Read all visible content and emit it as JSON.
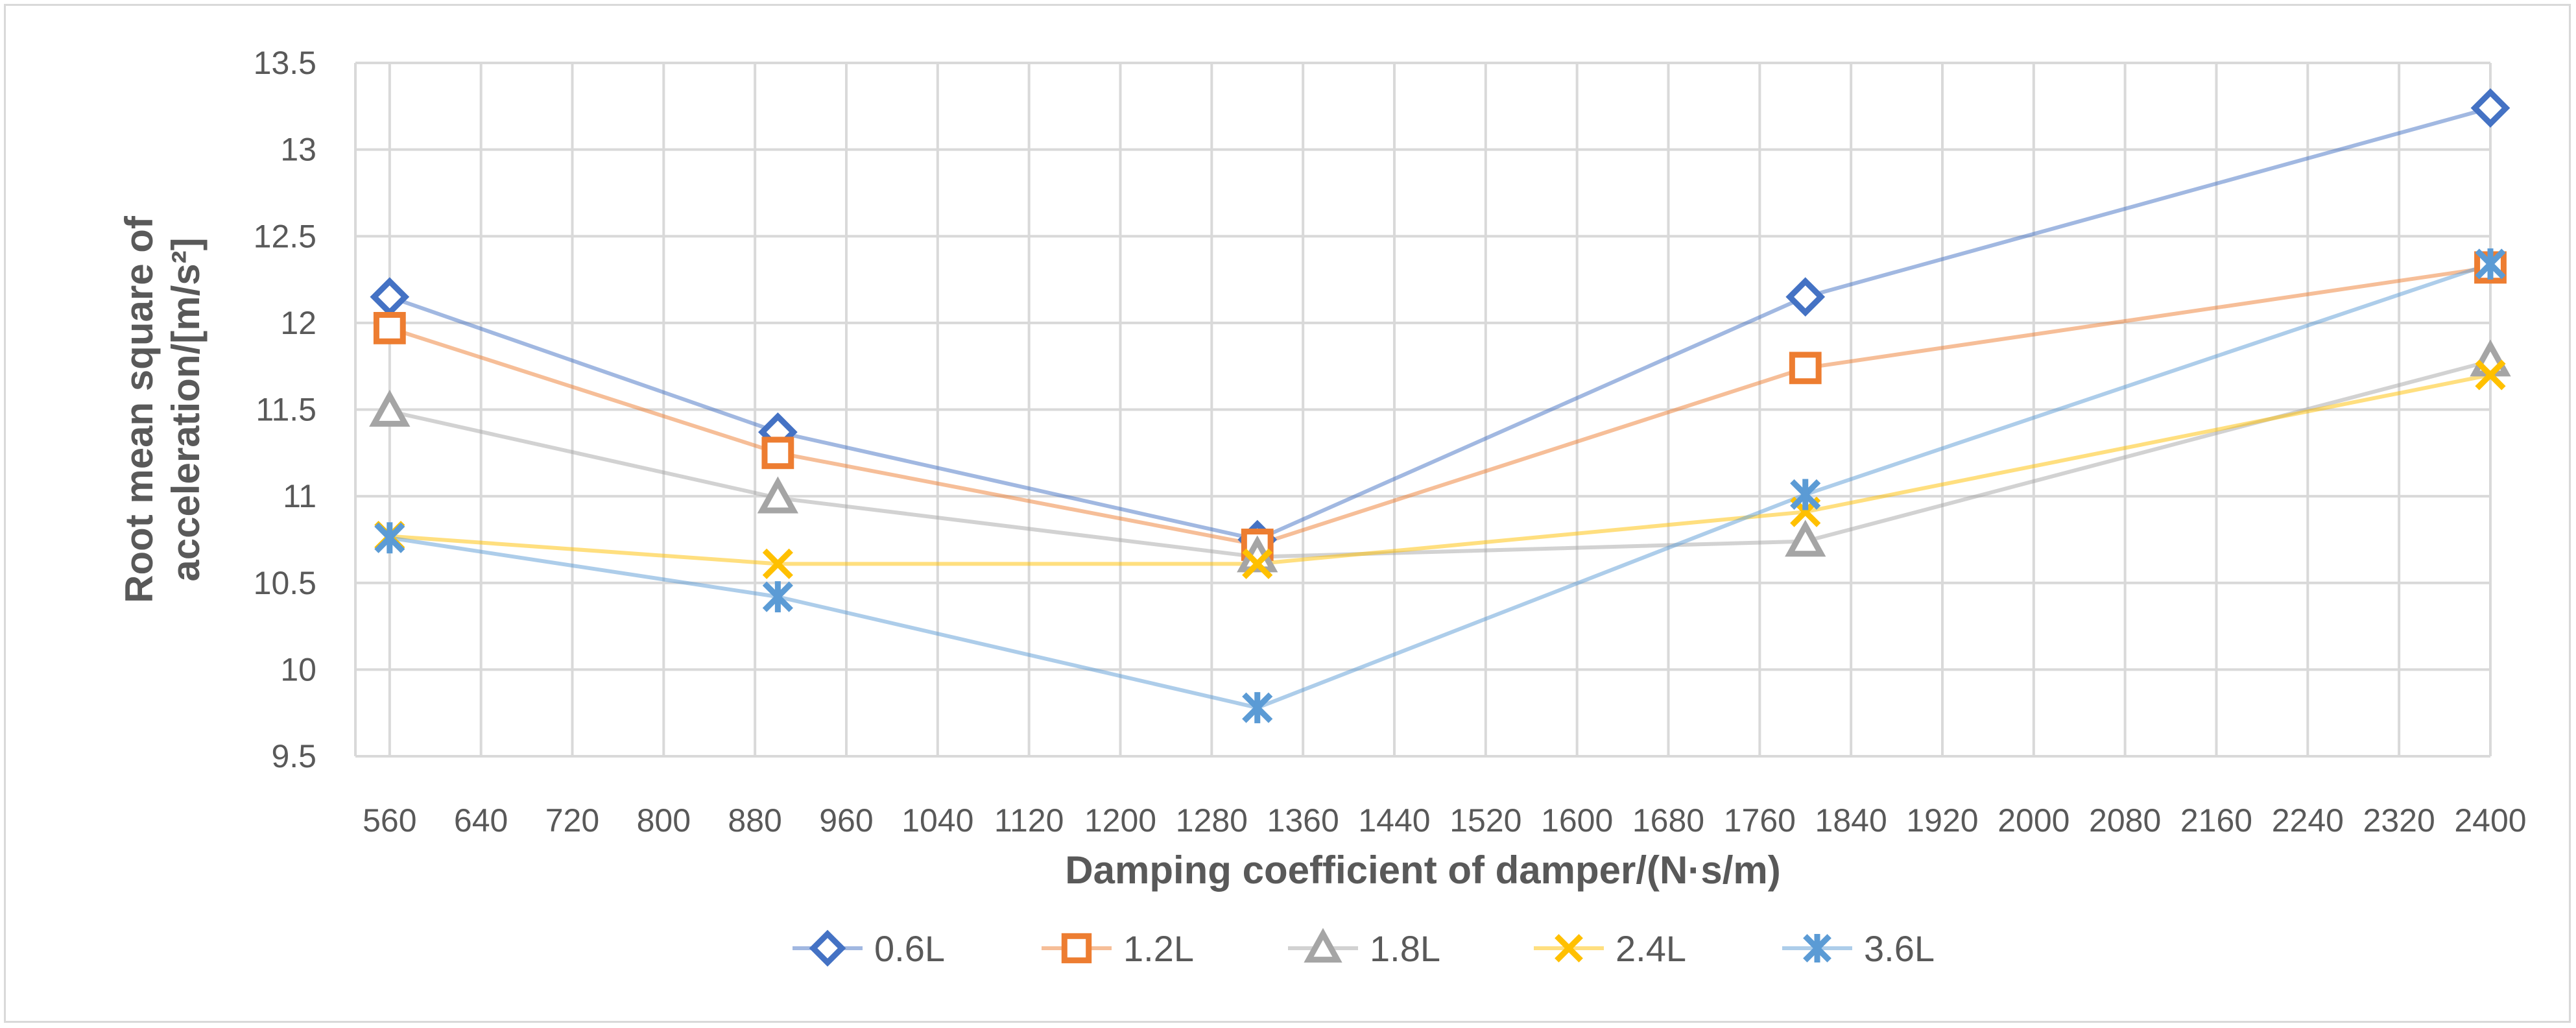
{
  "chart_data": {
    "type": "line",
    "title": "",
    "xlabel": "Damping coefficient of damper/(N·s/m)",
    "ylabel_line1": "Root mean square of",
    "ylabel_line2": "acceleration/[m/s²]",
    "xlim": [
      530,
      2400
    ],
    "ylim": [
      9.5,
      13.5
    ],
    "x_ticks": [
      560,
      640,
      720,
      800,
      880,
      960,
      1040,
      1120,
      1200,
      1280,
      1360,
      1440,
      1520,
      1600,
      1680,
      1760,
      1840,
      1920,
      2000,
      2080,
      2160,
      2240,
      2320,
      2400
    ],
    "y_ticks": [
      9.5,
      10,
      10.5,
      11,
      11.5,
      12,
      12.5,
      13,
      13.5
    ],
    "y_tick_labels": [
      "9.5",
      "10",
      "10.5",
      "11",
      "11.5",
      "12",
      "12.5",
      "13",
      "13.5"
    ],
    "grid": true,
    "legend_position": "bottom",
    "x": [
      560,
      900,
      1320,
      1800,
      2400
    ],
    "series": [
      {
        "name": "0.6L",
        "marker": "diamond",
        "color": "#4472C4",
        "values": [
          12.15,
          11.37,
          10.75,
          12.15,
          13.24
        ]
      },
      {
        "name": "1.2L",
        "marker": "square",
        "color": "#ED7D31",
        "values": [
          11.97,
          11.25,
          10.72,
          11.74,
          12.32
        ]
      },
      {
        "name": "1.8L",
        "marker": "triangle",
        "color": "#A5A5A5",
        "values": [
          11.49,
          10.99,
          10.65,
          10.74,
          11.78
        ]
      },
      {
        "name": "2.4L",
        "marker": "x",
        "color": "#FFC000",
        "values": [
          10.77,
          10.61,
          10.61,
          10.91,
          11.7
        ]
      },
      {
        "name": "3.6L",
        "marker": "star",
        "color": "#5B9BD5",
        "values": [
          10.76,
          10.42,
          9.78,
          11.01,
          12.34
        ]
      }
    ]
  }
}
